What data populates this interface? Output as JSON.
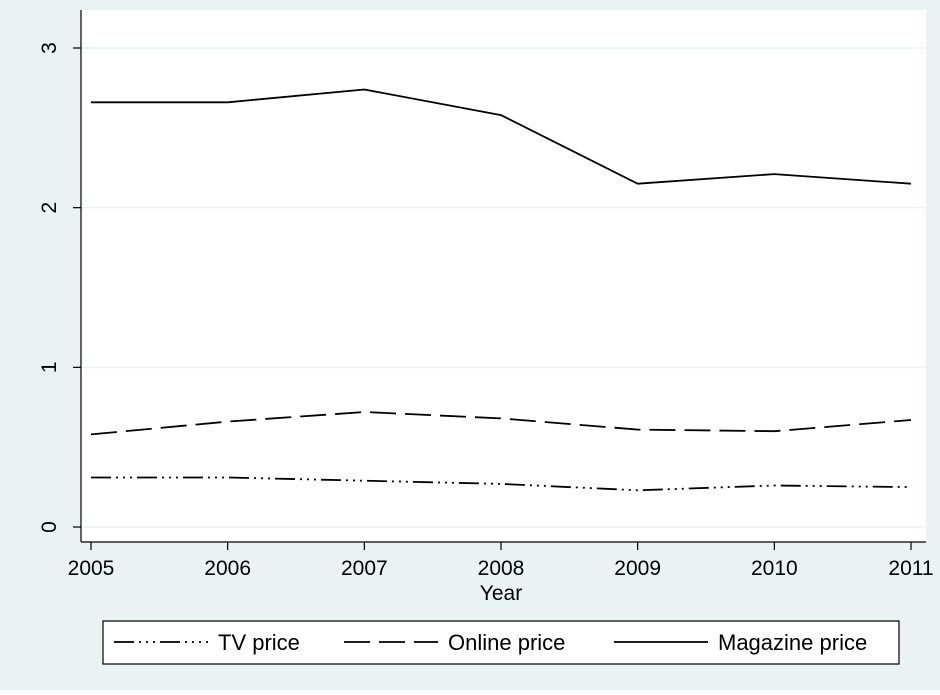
{
  "chart_data": {
    "type": "line",
    "x": [
      2005,
      2006,
      2007,
      2008,
      2009,
      2010,
      2011
    ],
    "xlabel": "Year",
    "ylabel": "",
    "xlim": [
      2005,
      2011
    ],
    "ylim": [
      0,
      3
    ],
    "xticks": [
      "2005",
      "2006",
      "2007",
      "2008",
      "2009",
      "2010",
      "2011"
    ],
    "yticks": [
      "0",
      "1",
      "2",
      "3"
    ],
    "grid": true,
    "legend_position": "bottom",
    "series": [
      {
        "name": "TV price",
        "line_style": "dash-dot",
        "values": [
          0.31,
          0.31,
          0.29,
          0.27,
          0.23,
          0.26,
          0.25
        ]
      },
      {
        "name": "Online price",
        "line_style": "long-dash",
        "values": [
          0.58,
          0.66,
          0.72,
          0.68,
          0.61,
          0.6,
          0.67
        ]
      },
      {
        "name": "Magazine price",
        "line_style": "solid",
        "values": [
          2.66,
          2.66,
          2.74,
          2.58,
          2.15,
          2.21,
          2.15
        ]
      }
    ],
    "colors": {
      "outer_background": "#eaf2f3",
      "plot_background": "#ffffff",
      "gridline": "#eaf2f3",
      "line": "#000000"
    }
  }
}
